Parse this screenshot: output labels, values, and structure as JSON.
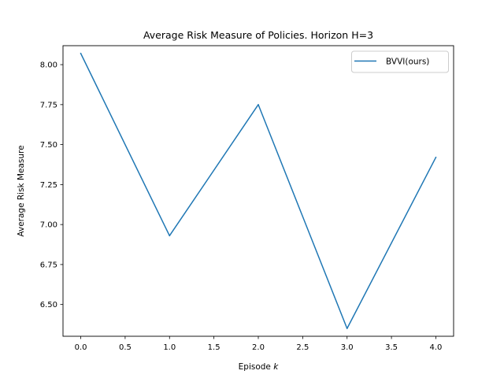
{
  "chart_data": {
    "type": "line",
    "title": "Average Risk Measure of Policies. Horizon H=3",
    "xlabel_prefix": "Episode ",
    "xlabel_var": "k",
    "ylabel": "Average Risk Measure",
    "x": [
      0,
      1,
      2,
      3,
      4
    ],
    "series": [
      {
        "name": "BVVI(ours)",
        "values": [
          8.07,
          6.93,
          7.75,
          6.35,
          7.42
        ],
        "color": "#1f77b4"
      }
    ],
    "xlim": [
      -0.2,
      4.2
    ],
    "ylim": [
      6.3014,
      8.1186
    ],
    "xticks": [
      0.0,
      0.5,
      1.0,
      1.5,
      2.0,
      2.5,
      3.0,
      3.5,
      4.0
    ],
    "xtick_labels": [
      "0.0",
      "0.5",
      "1.0",
      "1.5",
      "2.0",
      "2.5",
      "3.0",
      "3.5",
      "4.0"
    ],
    "yticks": [
      6.5,
      6.75,
      7.0,
      7.25,
      7.5,
      7.75,
      8.0
    ],
    "ytick_labels": [
      "6.50",
      "6.75",
      "7.00",
      "7.25",
      "7.50",
      "7.75",
      "8.00"
    ],
    "grid": false,
    "legend_position": "top-right"
  }
}
